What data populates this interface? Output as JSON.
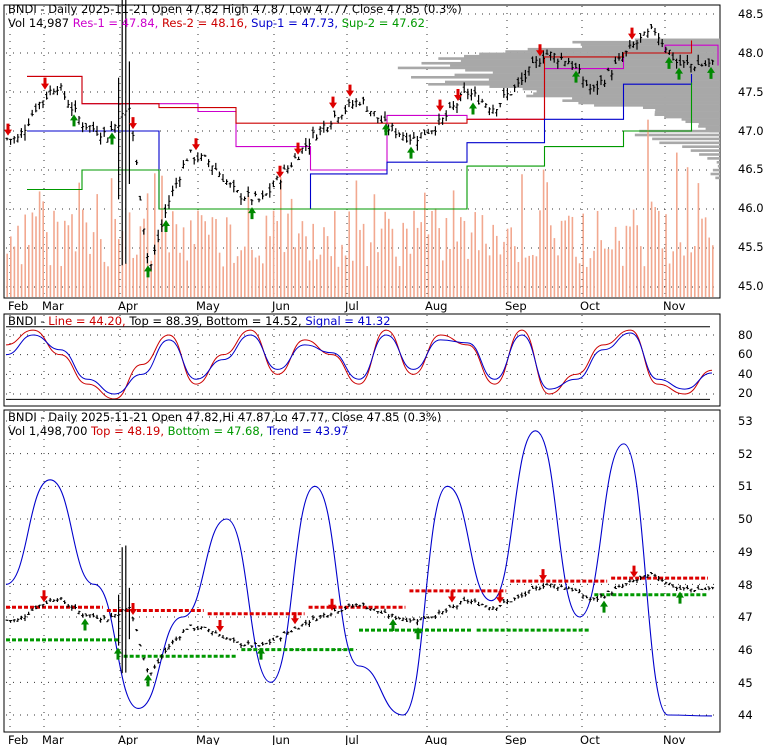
{
  "colors": {
    "background": "#ffffff",
    "frame": "#000000",
    "grid": "#333333",
    "price_bar": "#000000",
    "volume": "#f2a890",
    "volume_profile": "#a8a8a8",
    "res1": "#cc00cc",
    "res2": "#cc0000",
    "sup1": "#0000cc",
    "sup2": "#009900",
    "arrow_down": "#dd0000",
    "arrow_up": "#008800",
    "stoch_line": "#cc0000",
    "stoch_signal": "#0000cc",
    "stoch_top_bottom": "#000000",
    "trend": "#0000cc",
    "top_line": "#dd0000",
    "bottom_line": "#009900",
    "label_red": "#cc0000",
    "label_blue": "#0000cc",
    "label_green": "#009900",
    "label_magenta": "#cc00cc"
  },
  "panel1": {
    "row1": [
      {
        "text": "BNDI - Daily 2025-11-21 Open 47.82  High 47.87  Low 47.77  Close 47.85 (0.3%)",
        "color": "#000000"
      }
    ],
    "row2": [
      {
        "text": "Vol 14,987 ",
        "color": "#000000"
      },
      {
        "text": "Res-1 = 47.84, ",
        "color": "#cc00cc"
      },
      {
        "text": "Res-2 = 48.16, ",
        "color": "#cc0000"
      },
      {
        "text": "Sup-1 = 47.73, ",
        "color": "#0000cc"
      },
      {
        "text": "Sup-2 = 47.62",
        "color": "#009900"
      }
    ],
    "y_ticks": [
      "48.5",
      "48.0",
      "47.5",
      "47.0",
      "46.5",
      "46.0",
      "45.5",
      "45.0"
    ]
  },
  "panel2": {
    "row1": [
      {
        "text": "BNDI - ",
        "color": "#000000"
      },
      {
        "text": "Line = 44.20, ",
        "color": "#cc0000"
      },
      {
        "text": "Top = 88.39, ",
        "color": "#000000"
      },
      {
        "text": "Bottom = 14.52, ",
        "color": "#000000"
      },
      {
        "text": "Signal = 41.32",
        "color": "#0000cc"
      }
    ],
    "y_ticks": [
      "80",
      "60",
      "40",
      "20"
    ]
  },
  "panel3": {
    "row1": [
      {
        "text": "BNDI - Daily 2025-11-21 Open 47.82,Hi 47.87,Lo 47.77, Close 47.85 (0.3%)",
        "color": "#000000"
      }
    ],
    "row2": [
      {
        "text": "Vol 1,498,700 ",
        "color": "#000000"
      },
      {
        "text": "Top = 48.19, ",
        "color": "#cc0000"
      },
      {
        "text": "Bottom = 47.68, ",
        "color": "#009900"
      },
      {
        "text": "Trend = 43.97",
        "color": "#0000cc"
      }
    ],
    "y_ticks": [
      "53",
      "52",
      "51",
      "50",
      "49",
      "48",
      "47",
      "46",
      "45",
      "44"
    ]
  },
  "x_ticks": [
    "Feb",
    "Mar",
    "Apr",
    "May",
    "Jun",
    "Jul",
    "Aug",
    "Sep",
    "Oct",
    "Nov"
  ],
  "chart_data": [
    {
      "type": "ohlc-bar",
      "panel": "price",
      "ylim": [
        44.9,
        48.6
      ],
      "grid": true,
      "x": [
        "Feb",
        "Mar",
        "Apr",
        "May",
        "Jun",
        "Jul",
        "Aug",
        "Sep",
        "Oct",
        "Nov"
      ],
      "close_path": [
        [
          "Feb",
          46.9
        ],
        [
          "Feb",
          47.3
        ],
        [
          "Mar",
          47.6
        ],
        [
          "Mar",
          47.1
        ],
        [
          "Mar",
          46.95
        ],
        [
          "Apr",
          47.3
        ],
        [
          "Apr",
          45.2
        ],
        [
          "Apr",
          46.1
        ],
        [
          "Apr",
          46.7
        ],
        [
          "May",
          46.6
        ],
        [
          "May",
          46.2
        ],
        [
          "May",
          46.1
        ],
        [
          "Jun",
          46.5
        ],
        [
          "Jun",
          46.9
        ],
        [
          "Jun",
          47.2
        ],
        [
          "Jul",
          47.4
        ],
        [
          "Jul",
          47.05
        ],
        [
          "Jul",
          46.9
        ],
        [
          "Aug",
          47.1
        ],
        [
          "Aug",
          47.5
        ],
        [
          "Aug",
          47.3
        ],
        [
          "Sep",
          47.6
        ],
        [
          "Sep",
          48.0
        ],
        [
          "Sep",
          47.9
        ],
        [
          "Oct",
          47.5
        ],
        [
          "Oct",
          47.8
        ],
        [
          "Oct",
          48.1
        ],
        [
          "Oct",
          48.3
        ],
        [
          "Nov",
          47.85
        ],
        [
          "Nov",
          47.85
        ]
      ],
      "lines": [
        {
          "name": "Res-1",
          "color": "#cc00cc",
          "path": [
            [
              "Feb",
              47.7
            ],
            [
              "Mar",
              47.35
            ],
            [
              "Apr",
              47.35
            ],
            [
              "Apr",
              47.25
            ],
            [
              "May",
              46.8
            ],
            [
              "Jun",
              46.5
            ],
            [
              "Jul",
              47.2
            ],
            [
              "Aug",
              47.15
            ],
            [
              "Sep",
              47.8
            ],
            [
              "Oct",
              48.0
            ],
            [
              "Nov",
              48.1
            ],
            [
              "Nov",
              47.84
            ]
          ]
        },
        {
          "name": "Res-2",
          "color": "#cc0000",
          "path": [
            [
              "Feb",
              47.7
            ],
            [
              "Mar",
              47.35
            ],
            [
              "Apr",
              47.3
            ],
            [
              "May",
              47.1
            ],
            [
              "Jun",
              47.1
            ],
            [
              "Jul",
              47.1
            ],
            [
              "Aug",
              47.15
            ],
            [
              "Sep",
              47.95
            ],
            [
              "Oct",
              48.0
            ],
            [
              "Nov",
              48.16
            ]
          ]
        },
        {
          "name": "Sup-1",
          "color": "#0000cc",
          "path": [
            [
              "Feb",
              47.0
            ],
            [
              "Mar",
              47.0
            ],
            [
              "Apr",
              46.0
            ],
            [
              "May",
              46.0
            ],
            [
              "Jun",
              46.45
            ],
            [
              "Jul",
              46.6
            ],
            [
              "Aug",
              46.85
            ],
            [
              "Sep",
              47.15
            ],
            [
              "Oct",
              47.6
            ],
            [
              "Nov",
              47.73
            ]
          ]
        },
        {
          "name": "Sup-2",
          "color": "#009900",
          "path": [
            [
              "Feb",
              46.25
            ],
            [
              "Mar",
              46.5
            ],
            [
              "Apr",
              46.0
            ],
            [
              "May",
              46.0
            ],
            [
              "Jun",
              46.0
            ],
            [
              "Jul",
              46.0
            ],
            [
              "Aug",
              46.55
            ],
            [
              "Sep",
              46.8
            ],
            [
              "Oct",
              47.0
            ],
            [
              "Nov",
              47.62
            ]
          ]
        }
      ]
    },
    {
      "type": "line",
      "panel": "stochastic",
      "ylim": [
        10,
        95
      ],
      "series": [
        {
          "name": "Line",
          "color": "#cc0000",
          "values": [
            70,
            85,
            60,
            30,
            15,
            50,
            80,
            30,
            60,
            85,
            40,
            75,
            60,
            30,
            85,
            40,
            80,
            70,
            30,
            85,
            20,
            40,
            70,
            85,
            30,
            20,
            44.2
          ]
        },
        {
          "name": "Signal",
          "color": "#0000cc",
          "values": [
            60,
            80,
            65,
            35,
            20,
            40,
            75,
            35,
            55,
            80,
            45,
            70,
            62,
            35,
            80,
            45,
            75,
            72,
            35,
            80,
            25,
            35,
            65,
            82,
            35,
            25,
            41.32
          ]
        },
        {
          "name": "Top",
          "color": "#000000",
          "values": [
            88.39,
            88.39
          ]
        },
        {
          "name": "Bottom",
          "color": "#000000",
          "values": [
            14.52,
            14.52
          ]
        }
      ]
    },
    {
      "type": "line",
      "panel": "trend",
      "ylim": [
        43.5,
        53.2
      ],
      "series": [
        {
          "name": "Trend",
          "color": "#0000cc",
          "values": [
            48.0,
            51.2,
            48.0,
            44.2,
            47.0,
            50.0,
            45.0,
            51.0,
            45.5,
            44.0,
            51.0,
            47.5,
            52.7,
            47.0,
            52.3,
            44.0,
            43.97
          ]
        },
        {
          "name": "Top",
          "color": "#dd0000",
          "values": [
            47.3,
            47.2,
            47.1,
            47.3,
            47.8,
            48.1,
            48.19
          ]
        },
        {
          "name": "Bottom",
          "color": "#009900",
          "values": [
            46.3,
            45.8,
            46.0,
            46.6,
            46.6,
            47.68
          ]
        }
      ]
    }
  ]
}
